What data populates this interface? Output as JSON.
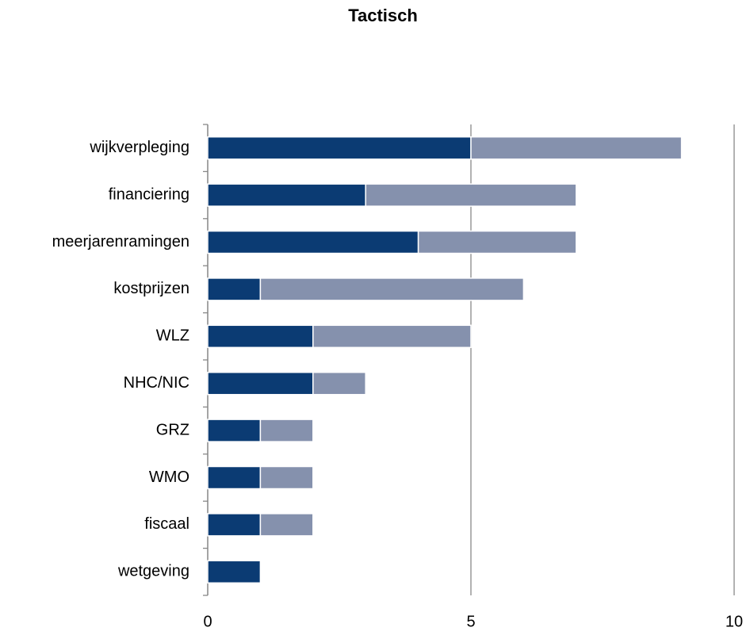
{
  "chart_data": {
    "type": "stacked_barh",
    "title": "Tactisch",
    "categories": [
      "wijkverpleging",
      "financiering",
      "meerjarenramingen",
      "kostprijzen",
      "WLZ",
      "NHC/NIC",
      "GRZ",
      "WMO",
      "fiscaal",
      "wetgeving"
    ],
    "series": [
      {
        "color": "#0b3b73",
        "values": [
          5,
          3,
          4,
          1,
          2,
          2,
          1,
          1,
          1,
          1
        ]
      },
      {
        "color": "#8591ad",
        "values": [
          4,
          4,
          3,
          5,
          3,
          1,
          1,
          1,
          1,
          0
        ]
      }
    ],
    "xlim": [
      0,
      10
    ],
    "xticks": [
      0,
      5,
      10
    ],
    "grid": true
  }
}
